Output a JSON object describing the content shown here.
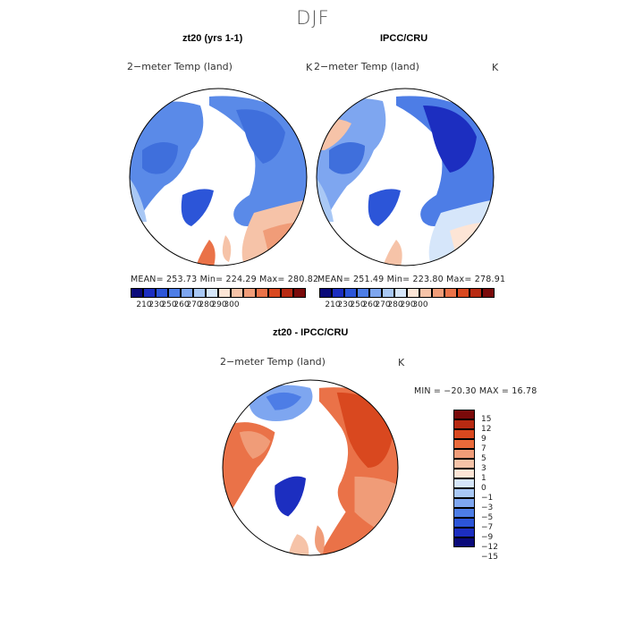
{
  "title": "DJF",
  "panels": [
    {
      "title": "zt20 (yrs 1-1)",
      "subtitle": "2−meter Temp (land)",
      "unit": "K",
      "stats": "MEAN= 253.73   Min= 224.29   Max= 280.82"
    },
    {
      "title": "IPCC/CRU",
      "subtitle": "2−meter Temp (land)",
      "unit": "K",
      "stats": "MEAN= 251.49   Min= 223.80   Max= 278.91"
    }
  ],
  "diff_panel": {
    "title": "zt20 - IPCC/CRU",
    "subtitle": "2−meter Temp (land)",
    "unit": "K",
    "stats": "MIN = −20.30  MAX =  16.78"
  },
  "colorbar_top": {
    "colors": [
      "#0a0a7a",
      "#1c2ec0",
      "#2c55d8",
      "#4d7de6",
      "#7ea6f0",
      "#a9c8f5",
      "#d6e6fa",
      "#fde5d6",
      "#f6c3a8",
      "#f09c78",
      "#ea7248",
      "#d9481f",
      "#b72a12",
      "#7a0a0a"
    ],
    "labels": [
      "210",
      "230",
      "250",
      "260",
      "270",
      "280",
      "290",
      "300"
    ]
  },
  "colorbar_diff": {
    "colors": [
      "#7a0a0a",
      "#b72a12",
      "#d9481f",
      "#ea6a3a",
      "#f09c78",
      "#f6c3a8",
      "#fde5d6",
      "#d6e6fa",
      "#a9c8f5",
      "#7ea6f0",
      "#4d7de6",
      "#2c55d8",
      "#1c2ec0",
      "#0a0a7a"
    ],
    "labels": [
      "15",
      "12",
      "9",
      "7",
      "5",
      "3",
      "1",
      "0",
      "−1",
      "−3",
      "−5",
      "−7",
      "−9",
      "−12",
      "−15"
    ]
  }
}
